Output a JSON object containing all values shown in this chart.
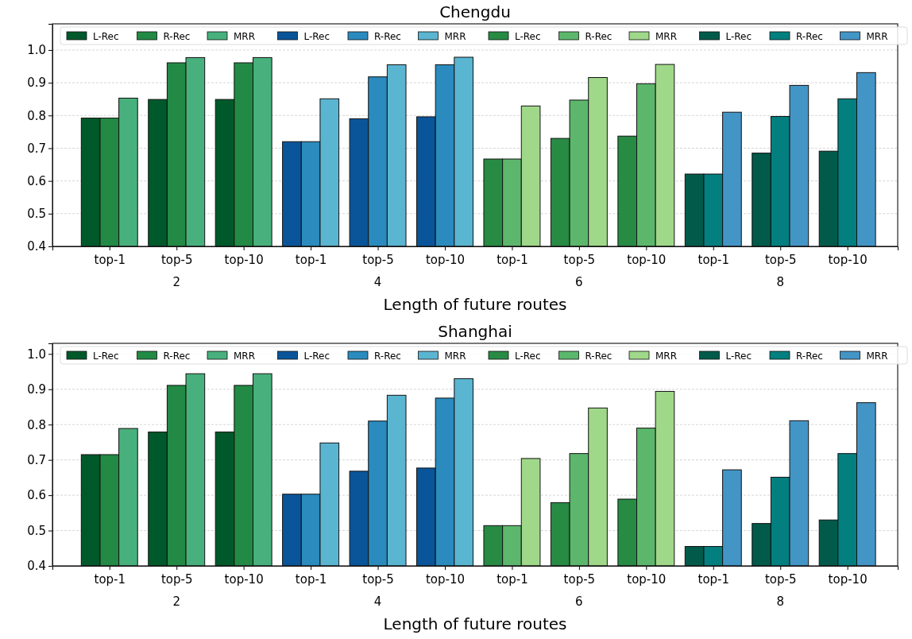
{
  "chart_data": [
    {
      "type": "bar",
      "title": "Chengdu",
      "xlabel": "Length of future routes",
      "categories": [
        "top-1",
        "top-5",
        "top-10",
        "top-1",
        "top-5",
        "top-10",
        "top-1",
        "top-5",
        "top-10",
        "top-1",
        "top-5",
        "top-10"
      ],
      "annotations": [
        "2",
        "4",
        "6",
        "8"
      ],
      "series": [
        {
          "name": "L-Rec",
          "color": "#00592a",
          "values": [
            0.792,
            0.849,
            0.849,
            null,
            null,
            null,
            null,
            null,
            null,
            null,
            null,
            null
          ]
        },
        {
          "name": "R-Rec",
          "color": "#228a44",
          "values": [
            0.792,
            0.961,
            0.961,
            null,
            null,
            null,
            null,
            null,
            null,
            null,
            null,
            null
          ]
        },
        {
          "name": "MRR",
          "color": "#48b07c",
          "values": [
            0.853,
            0.977,
            0.977,
            null,
            null,
            null,
            null,
            null,
            null,
            null,
            null,
            null
          ]
        },
        {
          "name": "L-Rec",
          "color": "#0a5599",
          "values": [
            null,
            null,
            null,
            0.72,
            0.79,
            0.796,
            null,
            null,
            null,
            null,
            null,
            null
          ]
        },
        {
          "name": "R-Rec",
          "color": "#2b8bbe",
          "values": [
            null,
            null,
            null,
            0.72,
            0.918,
            0.955,
            null,
            null,
            null,
            null,
            null,
            null
          ]
        },
        {
          "name": "MRR",
          "color": "#5ab5d1",
          "values": [
            null,
            null,
            null,
            0.851,
            0.955,
            0.978,
            null,
            null,
            null,
            null,
            null,
            null
          ]
        },
        {
          "name": "L-Rec",
          "color": "#278b44",
          "values": [
            null,
            null,
            null,
            null,
            null,
            null,
            0.667,
            0.73,
            0.737,
            null,
            null,
            null
          ]
        },
        {
          "name": "R-Rec",
          "color": "#5cb76c",
          "values": [
            null,
            null,
            null,
            null,
            null,
            null,
            0.667,
            0.847,
            0.897,
            null,
            null,
            null
          ]
        },
        {
          "name": "MRR",
          "color": "#a0d88a",
          "values": [
            null,
            null,
            null,
            null,
            null,
            null,
            0.829,
            0.916,
            0.956,
            null,
            null,
            null
          ]
        },
        {
          "name": "L-Rec",
          "color": "#025a4a",
          "values": [
            null,
            null,
            null,
            null,
            null,
            null,
            null,
            null,
            null,
            0.621,
            0.685,
            0.691
          ]
        },
        {
          "name": "R-Rec",
          "color": "#037f7f",
          "values": [
            null,
            null,
            null,
            null,
            null,
            null,
            null,
            null,
            null,
            0.621,
            0.797,
            0.851
          ]
        },
        {
          "name": "MRR",
          "color": "#4395c6",
          "values": [
            null,
            null,
            null,
            null,
            null,
            null,
            null,
            null,
            null,
            0.81,
            0.892,
            0.931
          ]
        }
      ],
      "ylim": [
        0.4,
        1.08
      ],
      "yticks": [
        {
          "value": 0.4,
          "label": "0.4"
        },
        {
          "value": 0.5,
          "label": "0.5"
        },
        {
          "value": 0.6,
          "label": "0.6"
        },
        {
          "value": 0.7,
          "label": "0.7"
        },
        {
          "value": 0.8,
          "label": "0.8"
        },
        {
          "value": 0.9,
          "label": "0.9"
        },
        {
          "value": 1.0,
          "label": "1.0"
        }
      ],
      "grid": "y",
      "legend": "top"
    },
    {
      "type": "bar",
      "title": "Shanghai",
      "xlabel": "Length of future routes",
      "categories": [
        "top-1",
        "top-5",
        "top-10",
        "top-1",
        "top-5",
        "top-10",
        "top-1",
        "top-5",
        "top-10",
        "top-1",
        "top-5",
        "top-10"
      ],
      "annotations": [
        "2",
        "4",
        "6",
        "8"
      ],
      "series": [
        {
          "name": "L-Rec",
          "color": "#00592a",
          "values": [
            0.715,
            0.779,
            0.779,
            null,
            null,
            null,
            null,
            null,
            null,
            null,
            null,
            null
          ]
        },
        {
          "name": "R-Rec",
          "color": "#228a44",
          "values": [
            0.715,
            0.911,
            0.911,
            null,
            null,
            null,
            null,
            null,
            null,
            null,
            null,
            null
          ]
        },
        {
          "name": "MRR",
          "color": "#48b07c",
          "values": [
            0.789,
            0.944,
            0.944,
            null,
            null,
            null,
            null,
            null,
            null,
            null,
            null,
            null
          ]
        },
        {
          "name": "L-Rec",
          "color": "#0a5599",
          "values": [
            null,
            null,
            null,
            0.603,
            0.668,
            0.677,
            null,
            null,
            null,
            null,
            null,
            null
          ]
        },
        {
          "name": "R-Rec",
          "color": "#2b8bbe",
          "values": [
            null,
            null,
            null,
            0.603,
            0.81,
            0.875,
            null,
            null,
            null,
            null,
            null,
            null
          ]
        },
        {
          "name": "MRR",
          "color": "#5ab5d1",
          "values": [
            null,
            null,
            null,
            0.748,
            0.883,
            0.93,
            null,
            null,
            null,
            null,
            null,
            null
          ]
        },
        {
          "name": "L-Rec",
          "color": "#278b44",
          "values": [
            null,
            null,
            null,
            null,
            null,
            null,
            0.514,
            0.579,
            0.589,
            null,
            null,
            null
          ]
        },
        {
          "name": "R-Rec",
          "color": "#5cb76c",
          "values": [
            null,
            null,
            null,
            null,
            null,
            null,
            0.514,
            0.718,
            0.79,
            null,
            null,
            null
          ]
        },
        {
          "name": "MRR",
          "color": "#a0d88a",
          "values": [
            null,
            null,
            null,
            null,
            null,
            null,
            0.704,
            0.847,
            0.894,
            null,
            null,
            null
          ]
        },
        {
          "name": "L-Rec",
          "color": "#025a4a",
          "values": [
            null,
            null,
            null,
            null,
            null,
            null,
            null,
            null,
            null,
            0.455,
            0.52,
            0.53
          ]
        },
        {
          "name": "R-Rec",
          "color": "#037f7f",
          "values": [
            null,
            null,
            null,
            null,
            null,
            null,
            null,
            null,
            null,
            0.455,
            0.651,
            0.718
          ]
        },
        {
          "name": "MRR",
          "color": "#4395c6",
          "values": [
            null,
            null,
            null,
            null,
            null,
            null,
            null,
            null,
            null,
            0.672,
            0.811,
            0.862
          ]
        }
      ],
      "ylim": [
        0.4,
        1.03
      ],
      "yticks": [
        {
          "value": 0.4,
          "label": "0.4"
        },
        {
          "value": 0.5,
          "label": "0.5"
        },
        {
          "value": 0.6,
          "label": "0.6"
        },
        {
          "value": 0.7,
          "label": "0.7"
        },
        {
          "value": 0.8,
          "label": "0.8"
        },
        {
          "value": 0.9,
          "label": "0.9"
        },
        {
          "value": 1.0,
          "label": "1.0"
        }
      ],
      "grid": "y",
      "legend": "top"
    }
  ]
}
